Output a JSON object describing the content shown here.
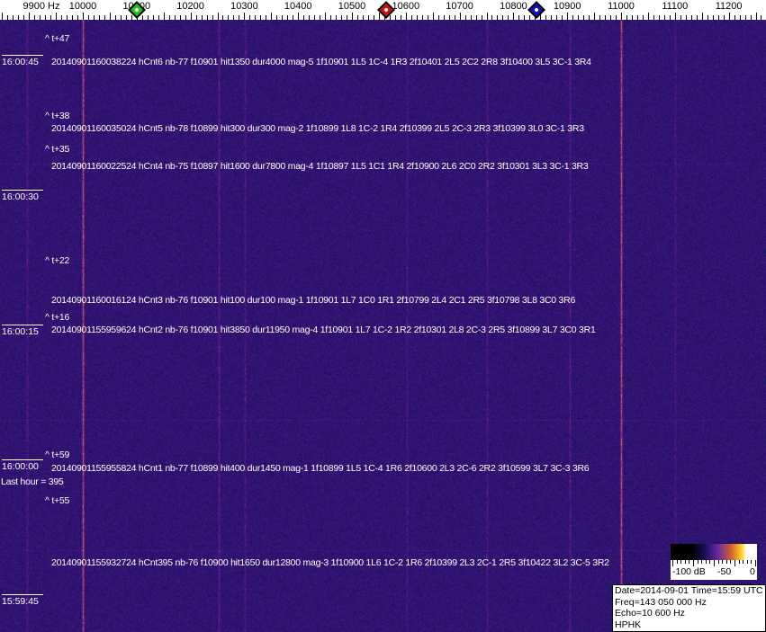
{
  "axis": {
    "unit_label": "9900 Hz",
    "ticks": [
      "10000",
      "10100",
      "10200",
      "10300",
      "10400",
      "10500",
      "10600",
      "10700",
      "10800",
      "10900",
      "11000",
      "11100",
      "11200"
    ]
  },
  "markers": [
    {
      "color": "#22c022",
      "freq_hz": 10100
    },
    {
      "color": "#d01010",
      "freq_hz": 10560
    },
    {
      "color": "#1010c0",
      "freq_hz": 10840
    }
  ],
  "time_labels": [
    "16:00:45",
    "16:00:30",
    "16:00:15",
    "16:00:00",
    "15:59:45"
  ],
  "offsets": [
    "^ t+47",
    "^ t+38",
    "^ t+35",
    "^ t+22",
    "^ t+16",
    "^ t+59",
    "^ t+55"
  ],
  "detections": [
    "20140901160038224 hCnt6 nb-77 f10901 hit1350 dur4000 mag-5 1f10901 1L5 1C-4 1R3 2f10401 2L5 2C2 2R8 3f10400 3L5 3C-1 3R4",
    "20140901160035024 hCnt5 nb-78 f10899 hit300 dur300 mag-2 1f10899 1L8 1C-2 1R4 2f10399 2L5 2C-3 2R3 3f10399 3L0 3C-1 3R3",
    "20140901160022524 hCnt4 nb-75 f10897 hit1600 dur7800 mag-4 1f10897 1L5 1C1 1R4 2f10900 2L6 2C0 2R2 3f10301 3L3 3C-1 3R3",
    "20140901160016124 hCnt3 nb-76 f10901 hit100 dur100 mag-1 1f10901 1L7 1C0 1R1 2f10799 2L4 2C1 2R5 3f10798 3L8 3C0 3R6",
    "20140901155959624 hCnt2 nb-76 f10901 hit3850 dur11950 mag-4 1f10901 1L7 1C-2 1R2 2f10301 2L8 2C-3 2R5 3f10899 3L7 3C0 3R1",
    "20140901155955824 hCnt1 nb-77 f10899 hit400 dur1450 mag-1 1f10899 1L5 1C-4 1R6 2f10600 2L3 2C-6 2R2 3f10599 3L7 3C-3 3R6",
    "20140901155932724 hCnt395 nb-76 f10900 hit1650 dur12800 mag-3 1f10900 1L6 1C-2 1R6 2f10399 2L3 2C-1 2R5 3f10422 3L2 3C-5 3R2"
  ],
  "last_hour": "Last hour = 395",
  "scale": {
    "labels": [
      "-100 dB",
      "-50",
      "0"
    ]
  },
  "info": {
    "date_time": "Date=2014-09-01 Time=15:59 UTC",
    "freq": "Freq=143 050 000 Hz",
    "echo": "Echo=10 600 Hz",
    "station": "HPHK"
  }
}
